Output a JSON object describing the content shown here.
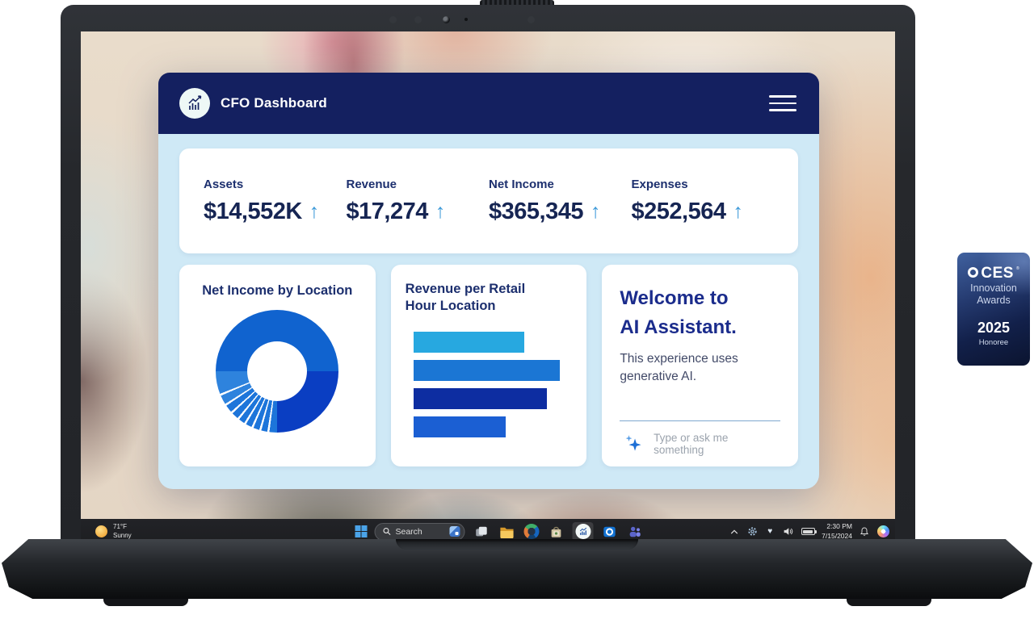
{
  "window": {
    "title": "CFO Dashboard",
    "arrow_glyph": "↑",
    "kpis": [
      {
        "label": "Assets",
        "value": "$14,552K",
        "trend": "up"
      },
      {
        "label": "Revenue",
        "value": "$17,274",
        "trend": "up"
      },
      {
        "label": "Net Income",
        "value": "$365,345",
        "trend": "up"
      },
      {
        "label": "Expenses",
        "value": "$252,564",
        "trend": "up"
      }
    ]
  },
  "cards": {
    "donut_title": "Net Income by Location",
    "bars_title": "Revenue per Retail Hour Location",
    "ai": {
      "heading_line1": "Welcome to",
      "heading_line2": "AI Assistant.",
      "body": "This experience uses generative AI.",
      "input_placeholder": "Type or ask me something"
    }
  },
  "chart_data": [
    {
      "type": "pie",
      "title": "Net Income by Location",
      "donut": true,
      "start_angle_deg": 270,
      "legend": "none",
      "slices": [
        {
          "value": 50,
          "color": "#1063cf"
        },
        {
          "value": 25,
          "color": "#0a3ec2"
        },
        {
          "value": 2.0,
          "color": "#1d75da"
        },
        {
          "value": 0.55,
          "color": "#ffffff"
        },
        {
          "value": 1.6,
          "color": "#1d75da"
        },
        {
          "value": 0.55,
          "color": "#ffffff"
        },
        {
          "value": 1.6,
          "color": "#1d75da"
        },
        {
          "value": 0.55,
          "color": "#ffffff"
        },
        {
          "value": 1.6,
          "color": "#1d75da"
        },
        {
          "value": 0.55,
          "color": "#ffffff"
        },
        {
          "value": 1.6,
          "color": "#1d75da"
        },
        {
          "value": 0.55,
          "color": "#ffffff"
        },
        {
          "value": 1.8,
          "color": "#1d75da"
        },
        {
          "value": 0.55,
          "color": "#ffffff"
        },
        {
          "value": 2.0,
          "color": "#1d75da"
        },
        {
          "value": 0.55,
          "color": "#ffffff"
        },
        {
          "value": 2.4,
          "color": "#2e83dd"
        },
        {
          "value": 0.55,
          "color": "#ffffff"
        },
        {
          "value": 6.0,
          "color": "#2e83dd"
        }
      ]
    },
    {
      "type": "bar",
      "title": "Revenue per Retail Hour Location",
      "orientation": "horizontal",
      "axis_labels": "none",
      "values_pct_width": [
        70,
        92,
        84,
        58
      ],
      "colors": [
        "#27a8e0",
        "#1b76d4",
        "#0d2da1",
        "#1b5fd3"
      ]
    }
  ],
  "taskbar": {
    "weather": {
      "temp": "71°F",
      "condition": "Sunny",
      "icon": "sun-icon"
    },
    "search": {
      "placeholder": "Search",
      "icon": "search-icon"
    },
    "app_icons": [
      "windows-start-icon",
      "task-view-icon",
      "file-explorer-icon",
      "media-app-icon",
      "store-bag-icon",
      "cfo-dashboard-app-icon",
      "outlook-icon",
      "teams-icon"
    ],
    "tray": {
      "icons": [
        "hidden-icons-chevron",
        "settings-gear-icon",
        "health-heart-icon",
        "volume-icon",
        "battery-icon",
        "notification-bell-icon",
        "copilot-icon"
      ],
      "time": "2:30 PM",
      "date": "7/15/2024"
    }
  },
  "ces_badge": {
    "brand": "CES",
    "trademark": "®",
    "line1": "Innovation",
    "line2": "Awards",
    "year": "2025",
    "subtitle": "Honoree"
  },
  "colors": {
    "header_navy": "#142060",
    "app_background": "#cfe9f6",
    "kpi_text_navy": "#162553",
    "trend_arrow_blue": "#3e9ad9",
    "ai_heading_indigo": "#1b2c8c"
  }
}
